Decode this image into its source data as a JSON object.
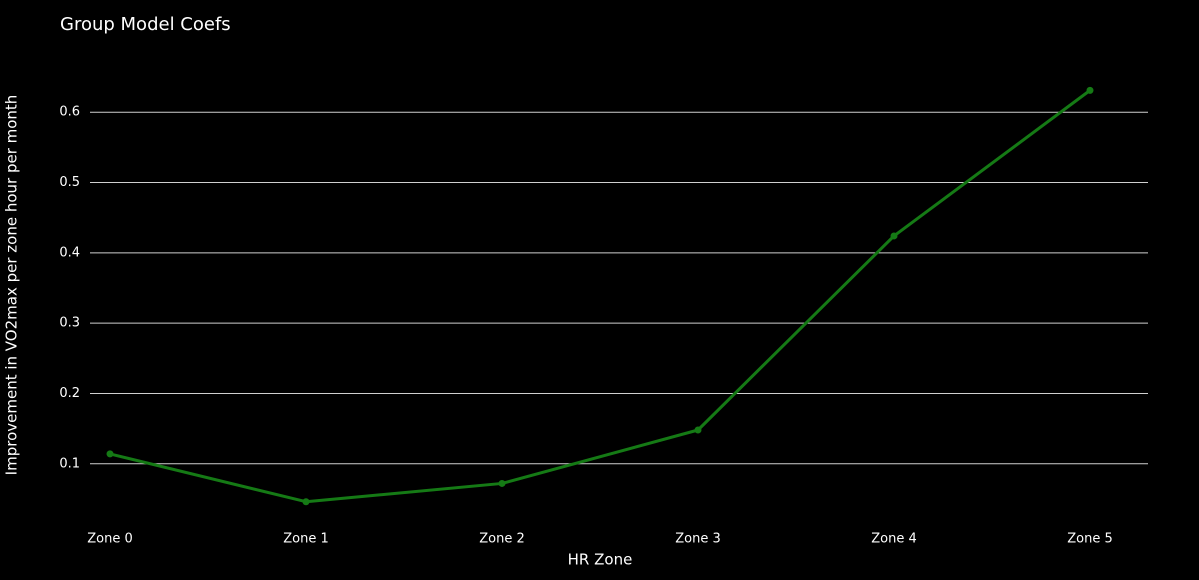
{
  "chart_data": {
    "type": "line",
    "title": "Group Model Coefs",
    "x_label": "HR Zone",
    "y_label": "Improvement in VO2max per zone hour per month",
    "categories": [
      "Zone 0",
      "Zone 1",
      "Zone 2",
      "Zone 3",
      "Zone 4",
      "Zone 5"
    ],
    "series": [
      {
        "name": "Group Model Coefs",
        "color": "#157a15",
        "values": [
          0.114,
          0.046,
          0.072,
          0.148,
          0.424,
          0.631
        ]
      }
    ],
    "ylim": [
      0.02,
      0.66
    ],
    "yticks": [
      0.1,
      0.2,
      0.3,
      0.4,
      0.5,
      0.6
    ],
    "grid": true
  }
}
